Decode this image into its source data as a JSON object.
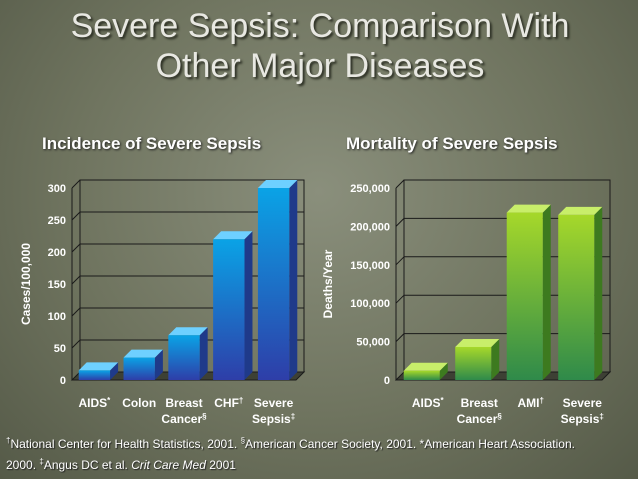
{
  "slide": {
    "title_line1": "Severe Sepsis: Comparison With",
    "title_line2": "Other Major Diseases"
  },
  "chart_data": [
    {
      "type": "bar",
      "title": "Incidence of Severe Sepsis",
      "ylabel": "Cases/100,000",
      "ylim": [
        0,
        300
      ],
      "yticks": [
        "0",
        "50",
        "100",
        "150",
        "200",
        "250",
        "300"
      ],
      "categories": [
        {
          "line1": "AIDS",
          "mark1": "*",
          "line2": "",
          "mark2": ""
        },
        {
          "line1": "Colon",
          "mark1": "",
          "line2": "",
          "mark2": ""
        },
        {
          "line1": "Breast",
          "mark1": "",
          "line2": "Cancer",
          "mark2": "§"
        },
        {
          "line1": "CHF",
          "mark1": "†",
          "line2": "",
          "mark2": ""
        },
        {
          "line1": "Severe",
          "mark1": "",
          "line2": "Sepsis",
          "mark2": "‡"
        }
      ],
      "values": [
        15,
        35,
        70,
        220,
        300
      ],
      "grid": true,
      "colors": {
        "front_top": "#0aa3e6",
        "front_bottom": "#2e3ea8",
        "side": "#1f3a8a",
        "top": "#6ed0ff"
      }
    },
    {
      "type": "bar",
      "title": "Mortality of Severe Sepsis",
      "ylabel": "Deaths/Year",
      "ylim": [
        0,
        250000
      ],
      "yticks": [
        "0",
        "50,000",
        "100,000",
        "150,000",
        "200,000",
        "250,000"
      ],
      "categories": [
        {
          "line1": "AIDS",
          "mark1": "*",
          "line2": "",
          "mark2": ""
        },
        {
          "line1": "Breast",
          "mark1": "",
          "line2": "Cancer",
          "mark2": "§"
        },
        {
          "line1": "AMI",
          "mark1": "†",
          "line2": "",
          "mark2": ""
        },
        {
          "line1": "Severe",
          "mark1": "",
          "line2": "Sepsis",
          "mark2": "‡"
        }
      ],
      "values": [
        12000,
        43000,
        218000,
        215000
      ],
      "grid": true,
      "colors": {
        "front_top": "#a6d82a",
        "front_bottom": "#2f8a4a",
        "side": "#3d7a1f",
        "top": "#c8ee6a"
      }
    }
  ],
  "footnote": {
    "m1": "†",
    "t1": "National Center for Health Statistics, 2001. ",
    "m2": "§",
    "t2": "American Cancer Society, 2001. *American Heart Association.",
    "t3": "2000. ",
    "m3": "‡",
    "t4": "Angus DC et al. ",
    "journal": "Crit Care Med",
    "t5": " 2001"
  }
}
